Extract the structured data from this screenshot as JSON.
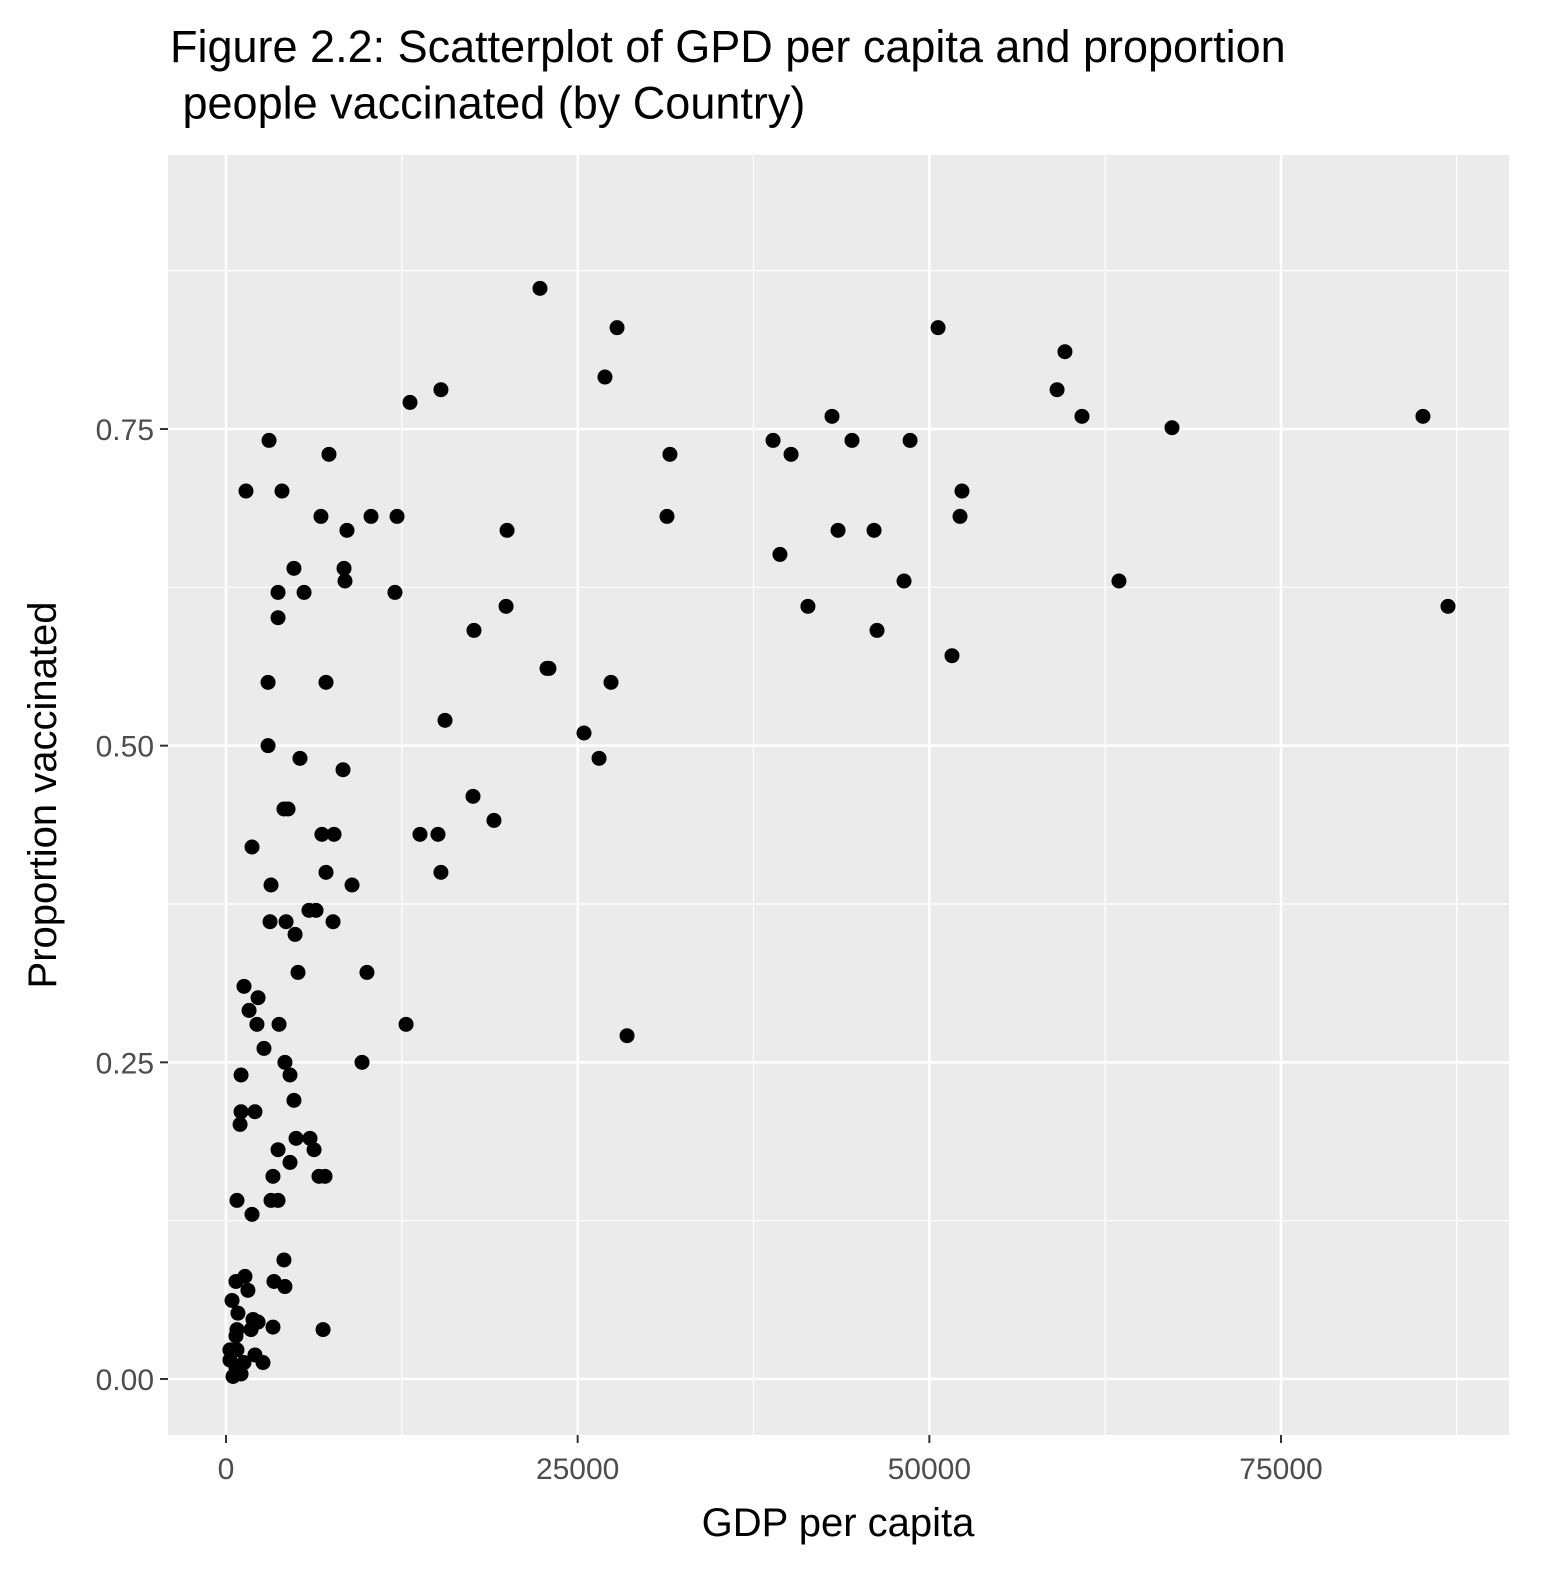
{
  "chart_data": {
    "type": "scatter",
    "title": "Figure 2.2: Scatterplot of GPD per capita and proportion\n people vaccinated (by Country)",
    "x_label": "GDP per capita",
    "y_label": "Proportion vaccinated",
    "xlim": [
      -4123,
      91207
    ],
    "ylim": [
      -0.0442,
      0.9663
    ],
    "xticks": [
      0,
      25000,
      50000,
      75000
    ],
    "yticks": [
      {
        "value": 0,
        "label": "0.00"
      },
      {
        "value": 0.25,
        "label": "0.25"
      },
      {
        "value": 0.5,
        "label": "0.50"
      },
      {
        "value": 0.75,
        "label": "0.75"
      }
    ],
    "minor_xticks": [
      12500,
      37500,
      62500,
      87500
    ],
    "minor_yticks": [
      0.125,
      0.375,
      0.625,
      0.875
    ],
    "grid": true,
    "color": "#000000",
    "x": [
      22320,
      27800,
      50620,
      59640,
      26940,
      59080,
      15280,
      13080,
      43080,
      60850,
      85090,
      67250,
      3060,
      38890,
      44500,
      48630,
      7320,
      31560,
      40170,
      1420,
      3980,
      52320,
      6750,
      10310,
      12160,
      31350,
      52180,
      8600,
      19980,
      43510,
      46070,
      39380,
      4830,
      8390,
      8460,
      48200,
      63480,
      3700,
      5550,
      12010,
      19910,
      41370,
      86870,
      3700,
      17630,
      46280,
      22820,
      22960,
      51610,
      2990,
      7110,
      27370,
      15570,
      25450,
      2990,
      5260,
      26520,
      8320,
      17560,
      4120,
      4410,
      19050,
      6820,
      7680,
      13790,
      15070,
      1850,
      7110,
      15280,
      3200,
      8960,
      5900,
      6400,
      3130,
      4270,
      7610,
      4910,
      5120,
      10020,
      1280,
      2280,
      1640,
      2200,
      3770,
      12800,
      28510,
      2700,
      4190,
      9670,
      1070,
      4550,
      4830,
      1070,
      2060,
      1000,
      4980,
      5970,
      3700,
      6260,
      4550,
      3340,
      6610,
      7040,
      780,
      3200,
      3700,
      1850,
      4120,
      710,
      1350,
      3410,
      4190,
      1560,
      430,
      850,
      1920,
      2280,
      780,
      3340,
      6900,
      1780,
      710,
      280,
      780,
      2060,
      280,
      2630,
      1280,
      710,
      500,
      1070
    ],
    "values": [
      0.861,
      0.83,
      0.83,
      0.811,
      0.791,
      0.781,
      0.781,
      0.771,
      0.76,
      0.76,
      0.76,
      0.751,
      0.741,
      0.741,
      0.741,
      0.741,
      0.73,
      0.73,
      0.73,
      0.701,
      0.701,
      0.701,
      0.681,
      0.681,
      0.681,
      0.681,
      0.681,
      0.67,
      0.67,
      0.67,
      0.67,
      0.651,
      0.64,
      0.64,
      0.63,
      0.63,
      0.63,
      0.621,
      0.621,
      0.621,
      0.61,
      0.61,
      0.61,
      0.601,
      0.591,
      0.591,
      0.561,
      0.561,
      0.571,
      0.55,
      0.55,
      0.55,
      0.52,
      0.51,
      0.5,
      0.49,
      0.49,
      0.481,
      0.46,
      0.45,
      0.45,
      0.441,
      0.43,
      0.43,
      0.43,
      0.43,
      0.42,
      0.4,
      0.4,
      0.39,
      0.39,
      0.37,
      0.37,
      0.361,
      0.361,
      0.361,
      0.351,
      0.321,
      0.321,
      0.31,
      0.301,
      0.291,
      0.28,
      0.28,
      0.28,
      0.271,
      0.261,
      0.25,
      0.25,
      0.24,
      0.24,
      0.22,
      0.211,
      0.211,
      0.201,
      0.19,
      0.19,
      0.181,
      0.181,
      0.171,
      0.16,
      0.16,
      0.16,
      0.141,
      0.141,
      0.141,
      0.13,
      0.094,
      0.077,
      0.081,
      0.077,
      0.073,
      0.07,
      0.062,
      0.052,
      0.047,
      0.045,
      0.039,
      0.041,
      0.039,
      0.039,
      0.034,
      0.023,
      0.023,
      0.019,
      0.015,
      0.013,
      0.013,
      0.009,
      0.002,
      0.004
    ]
  }
}
